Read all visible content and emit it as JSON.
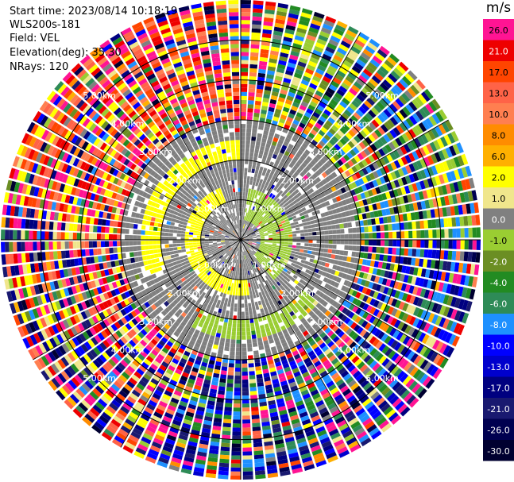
{
  "info": {
    "start_time": "Start time: 2023/08/14 10:18:19",
    "instrument": "WLS200s-181",
    "field": "Field: VEL",
    "elevation": "Elevation(deg): 35.30",
    "nrays": "NRays: 120"
  },
  "colorbar": {
    "unit": "m/s",
    "levels": [
      {
        "label": "26.0",
        "color": "#ff1493"
      },
      {
        "label": "21.0",
        "color": "#ee0000"
      },
      {
        "label": "17.0",
        "color": "#ff4500"
      },
      {
        "label": "13.0",
        "color": "#ff6347"
      },
      {
        "label": "10.0",
        "color": "#ff7f50"
      },
      {
        "label": "8.0",
        "color": "#ff8c00"
      },
      {
        "label": "6.0",
        "color": "#ffb000"
      },
      {
        "label": "2.0",
        "color": "#ffff00"
      },
      {
        "label": "1.0",
        "color": "#f0e68c"
      },
      {
        "label": "0.0",
        "color": "#808080"
      },
      {
        "label": "-1.0",
        "color": "#9acd32"
      },
      {
        "label": "-2.0",
        "color": "#6b8e23"
      },
      {
        "label": "-4.0",
        "color": "#228b22"
      },
      {
        "label": "-6.0",
        "color": "#2e8b57"
      },
      {
        "label": "-8.0",
        "color": "#1e90ff"
      },
      {
        "label": "-10.0",
        "color": "#0000ff"
      },
      {
        "label": "-13.0",
        "color": "#0000cd"
      },
      {
        "label": "-17.0",
        "color": "#000080"
      },
      {
        "label": "-21.0",
        "color": "#191970"
      },
      {
        "label": "-26.0",
        "color": "#000050"
      },
      {
        "label": "-30.0",
        "color": "#000030"
      }
    ]
  },
  "chart_data": {
    "type": "heatmap",
    "field": "VEL",
    "units": "m/s",
    "n_rays": 120,
    "elevation_deg": 35.3,
    "max_range_km": 6.0,
    "range_ring_labels": [
      "1.00km",
      "2.00km",
      "3.00km",
      "4.00km",
      "5.00km"
    ],
    "range_rings_km": [
      1,
      2,
      3,
      4,
      5
    ],
    "inner_regions": [
      {
        "description_value": 0.0,
        "range_km": [
          0.0,
          3.0
        ]
      },
      {
        "description_value": 2.0,
        "range_km": [
          1.0,
          1.4
        ],
        "azimuth_deg": [
          170,
          340
        ]
      },
      {
        "description_value": -1.0,
        "range_km": [
          0.5,
          1.3
        ],
        "azimuth_deg": [
          10,
          140
        ]
      },
      {
        "description_value": -1.0,
        "range_km": [
          2.0,
          2.5
        ],
        "azimuth_deg": [
          130,
          210
        ]
      },
      {
        "description_value": 2.0,
        "range_km": [
          2.0,
          2.5
        ],
        "azimuth_deg": [
          250,
          360
        ]
      }
    ],
    "outer_noise_range_km": [
      3.0,
      6.0
    ]
  }
}
